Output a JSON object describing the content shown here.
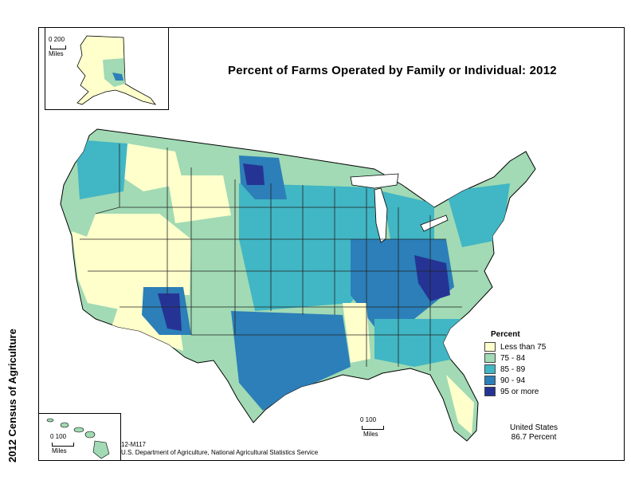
{
  "title": "Percent of Farms Operated by Family or Individual:  2012",
  "side_label": "2012 Census of Agriculture",
  "legend": {
    "title": "Percent",
    "items": [
      {
        "label": "Less than 75",
        "color": "#ffffcc"
      },
      {
        "label": "75 - 84",
        "color": "#a1dab4"
      },
      {
        "label": "85 - 89",
        "color": "#41b6c4"
      },
      {
        "label": "90 - 94",
        "color": "#2c7fb8"
      },
      {
        "label": "95 or more",
        "color": "#253494"
      }
    ]
  },
  "us_summary": {
    "line1": "United States",
    "line2": "86.7 Percent"
  },
  "map_code": "12-M117",
  "source": "U.S. Department of Agriculture, National Agricultural Statistics Service",
  "scale_alaska": {
    "nums": "0  200",
    "unit": "Miles"
  },
  "scale_main": {
    "nums": "0    100",
    "unit": "Miles"
  },
  "scale_hawaii": {
    "nums": "0    100",
    "unit": "Miles"
  },
  "colors": {
    "outline": "#000000",
    "state_line": "#222222"
  }
}
